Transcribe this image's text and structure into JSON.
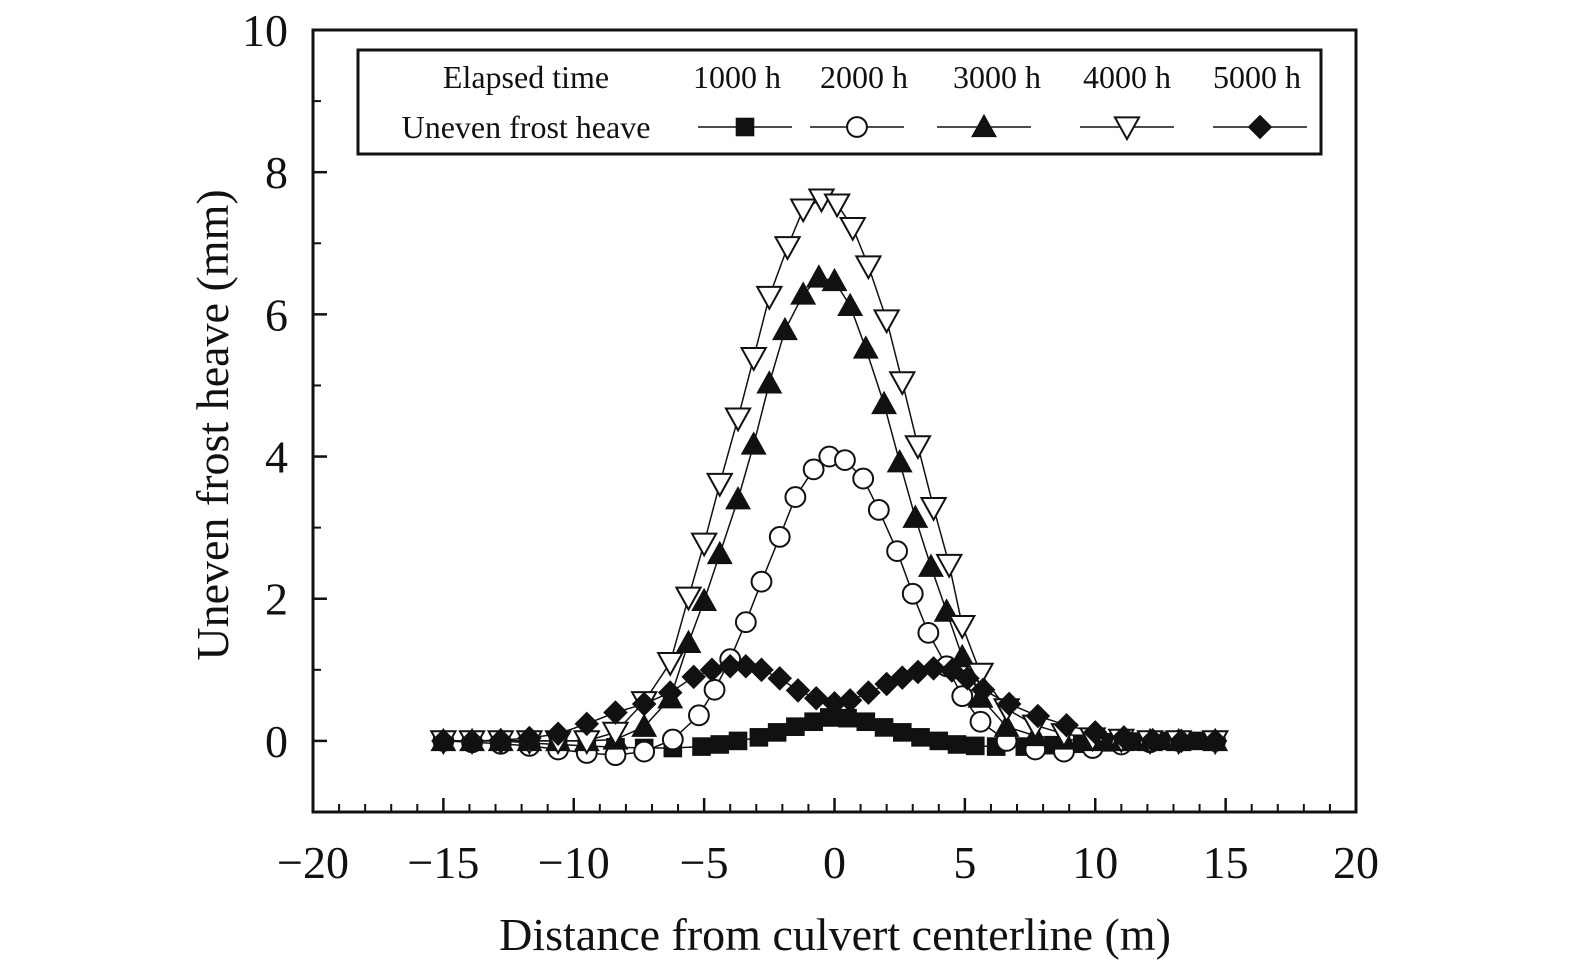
{
  "chart_data": {
    "type": "line",
    "xlabel": "Distance from culvert centerline (m)",
    "ylabel": "Uneven frost heave (mm)",
    "xlim": [
      -20,
      20
    ],
    "ylim": [
      -1,
      10
    ],
    "xticks": [
      -20,
      -15,
      -10,
      -5,
      0,
      5,
      10,
      15,
      20
    ],
    "xtick_labels": [
      "−20",
      "−15",
      "−10",
      "−5",
      "0",
      "5",
      "10",
      "15",
      "20"
    ],
    "yticks": [
      0,
      2,
      4,
      6,
      8,
      10
    ],
    "ytick_labels": [
      "0",
      "2",
      "4",
      "6",
      "8",
      "10"
    ],
    "grid": false,
    "legend": {
      "placement": "top",
      "row1_label": "Elapsed time",
      "row2_label": "Uneven frost heave"
    },
    "series": [
      {
        "name": "1000 h",
        "marker": "filled-square",
        "x": [
          -15,
          -13.9,
          -12.8,
          -11.7,
          -10.6,
          -9.5,
          -8.4,
          -7.3,
          -6.2,
          -5.1,
          -4.4,
          -3.7,
          -2.9,
          -2.2,
          -1.5,
          -0.8,
          -0.2,
          0.5,
          1.2,
          1.9,
          2.6,
          3.3,
          4.0,
          4.7,
          5.4,
          6.2,
          7.3,
          8.4,
          9.5,
          10.6,
          11.7,
          12.8,
          13.9,
          14.6
        ],
        "y": [
          0,
          0,
          0,
          -0.03,
          -0.05,
          -0.07,
          -0.09,
          -0.1,
          -0.1,
          -0.08,
          -0.05,
          0.0,
          0.05,
          0.12,
          0.2,
          0.27,
          0.33,
          0.32,
          0.27,
          0.19,
          0.12,
          0.05,
          0.0,
          -0.05,
          -0.07,
          -0.08,
          -0.08,
          -0.06,
          -0.04,
          -0.02,
          -0.01,
          0,
          0,
          0
        ]
      },
      {
        "name": "2000 h",
        "marker": "open-circle",
        "x": [
          -15,
          -13.9,
          -12.8,
          -11.7,
          -10.6,
          -9.5,
          -8.4,
          -7.3,
          -6.2,
          -5.2,
          -4.6,
          -4.0,
          -3.4,
          -2.8,
          -2.1,
          -1.5,
          -0.8,
          -0.2,
          0.4,
          1.1,
          1.7,
          2.4,
          3.0,
          3.6,
          4.3,
          4.9,
          5.6,
          6.6,
          7.7,
          8.8,
          9.9,
          11.0,
          12.1,
          13.2,
          14.6
        ],
        "y": [
          0,
          -0.02,
          -0.04,
          -0.07,
          -0.12,
          -0.17,
          -0.2,
          -0.15,
          0.02,
          0.36,
          0.72,
          1.15,
          1.67,
          2.24,
          2.87,
          3.43,
          3.82,
          4.0,
          3.95,
          3.69,
          3.25,
          2.67,
          2.07,
          1.52,
          1.05,
          0.63,
          0.27,
          0.0,
          -0.12,
          -0.15,
          -0.1,
          -0.05,
          -0.02,
          0,
          0
        ]
      },
      {
        "name": "3000 h",
        "marker": "filled-triangle",
        "x": [
          -15,
          -13.9,
          -12.8,
          -11.7,
          -10.6,
          -9.5,
          -8.4,
          -7.3,
          -6.3,
          -5.6,
          -5.0,
          -4.4,
          -3.7,
          -3.1,
          -2.5,
          -1.9,
          -1.2,
          -0.6,
          0.0,
          0.6,
          1.2,
          1.9,
          2.5,
          3.1,
          3.7,
          4.3,
          4.9,
          5.6,
          6.6,
          7.7,
          8.8,
          9.9,
          11.0,
          12.1,
          13.2,
          14.6
        ],
        "y": [
          0,
          0,
          0,
          0,
          0,
          0,
          0.02,
          0.2,
          0.6,
          1.38,
          1.97,
          2.63,
          3.4,
          4.17,
          5.03,
          5.78,
          6.28,
          6.52,
          6.47,
          6.12,
          5.52,
          4.74,
          3.92,
          3.14,
          2.45,
          1.82,
          1.18,
          0.61,
          0.2,
          0.07,
          0.02,
          0,
          0,
          0,
          0,
          0
        ]
      },
      {
        "name": "4000 h",
        "marker": "open-triangle-down",
        "x": [
          -15,
          -13.9,
          -12.8,
          -11.7,
          -10.6,
          -9.5,
          -8.4,
          -7.3,
          -6.3,
          -5.6,
          -5.0,
          -4.4,
          -3.7,
          -3.1,
          -2.5,
          -1.8,
          -1.2,
          -0.5,
          0.1,
          0.7,
          1.3,
          2.0,
          2.6,
          3.2,
          3.8,
          4.4,
          4.9,
          5.6,
          6.6,
          7.7,
          8.8,
          9.9,
          11.0,
          12.1,
          13.2,
          14.6
        ],
        "y": [
          0,
          0,
          0,
          0,
          0,
          0,
          0.12,
          0.55,
          1.1,
          2.02,
          2.78,
          3.62,
          4.54,
          5.39,
          6.25,
          6.95,
          7.48,
          7.62,
          7.55,
          7.22,
          6.68,
          5.92,
          5.05,
          4.15,
          3.28,
          2.48,
          1.62,
          0.95,
          0.45,
          0.22,
          0.1,
          0.04,
          0.02,
          0,
          0,
          0
        ]
      },
      {
        "name": "5000 h",
        "marker": "filled-diamond",
        "x": [
          -15,
          -13.9,
          -12.8,
          -11.7,
          -10.6,
          -9.5,
          -8.4,
          -7.3,
          -6.3,
          -5.4,
          -4.7,
          -4.0,
          -3.4,
          -2.8,
          -2.1,
          -1.4,
          -0.7,
          0.0,
          0.6,
          1.3,
          2.0,
          2.6,
          3.2,
          3.8,
          4.5,
          5.1,
          5.7,
          6.7,
          7.8,
          8.9,
          10.0,
          11.1,
          12.2,
          13.3,
          14.6
        ],
        "y": [
          0,
          0,
          0.01,
          0.04,
          0.1,
          0.24,
          0.4,
          0.52,
          0.68,
          0.9,
          1.0,
          1.05,
          1.05,
          1.0,
          0.88,
          0.71,
          0.6,
          0.53,
          0.57,
          0.68,
          0.8,
          0.89,
          0.97,
          1.02,
          0.99,
          0.88,
          0.72,
          0.52,
          0.35,
          0.22,
          0.12,
          0.05,
          0.01,
          0,
          0
        ]
      }
    ]
  }
}
